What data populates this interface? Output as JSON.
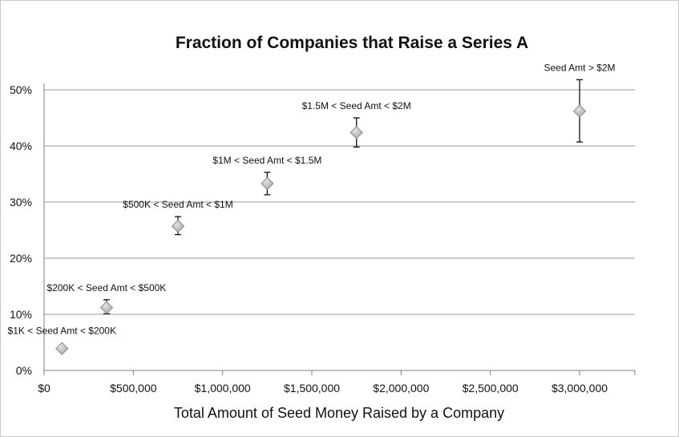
{
  "chart_data": {
    "type": "scatter",
    "title": "Fraction of Companies that Raise a Series A",
    "xlabel": "Total Amount of Seed Money Raised by a Company",
    "ylabel": "",
    "xlim": [
      0,
      3300000
    ],
    "ylim": [
      0,
      0.5
    ],
    "x_ticks": [
      0,
      500000,
      1000000,
      1500000,
      2000000,
      2500000,
      3000000
    ],
    "x_tick_labels": [
      "$0",
      "$500,000",
      "$1,000,000",
      "$1,500,000",
      "$2,000,000",
      "$2,500,000",
      "$3,000,000"
    ],
    "y_ticks": [
      0,
      0.1,
      0.2,
      0.3,
      0.4,
      0.5
    ],
    "y_tick_labels": [
      "0%",
      "10%",
      "20%",
      "30%",
      "40%",
      "50%"
    ],
    "grid": "horizontal",
    "marker_color": "#a6a6a6",
    "error_bar_color": "#111111",
    "points": [
      {
        "x": 100000,
        "y": 0.039,
        "err_low": 0.037,
        "err_high": 0.041,
        "label": "$1K < Seed Amt < $200K"
      },
      {
        "x": 350000,
        "y": 0.112,
        "err_low": 0.101,
        "err_high": 0.126,
        "label": "$200K < Seed Amt < $500K"
      },
      {
        "x": 750000,
        "y": 0.257,
        "err_low": 0.242,
        "err_high": 0.274,
        "label": "$500K < Seed Amt < $1M"
      },
      {
        "x": 1250000,
        "y": 0.333,
        "err_low": 0.313,
        "err_high": 0.353,
        "label": "$1M < Seed Amt < $1.5M"
      },
      {
        "x": 1750000,
        "y": 0.424,
        "err_low": 0.398,
        "err_high": 0.45,
        "label": "$1.5M < Seed Amt < $2M"
      },
      {
        "x": 3000000,
        "y": 0.462,
        "err_low": 0.407,
        "err_high": 0.518,
        "label": "Seed Amt > $2M"
      }
    ]
  }
}
